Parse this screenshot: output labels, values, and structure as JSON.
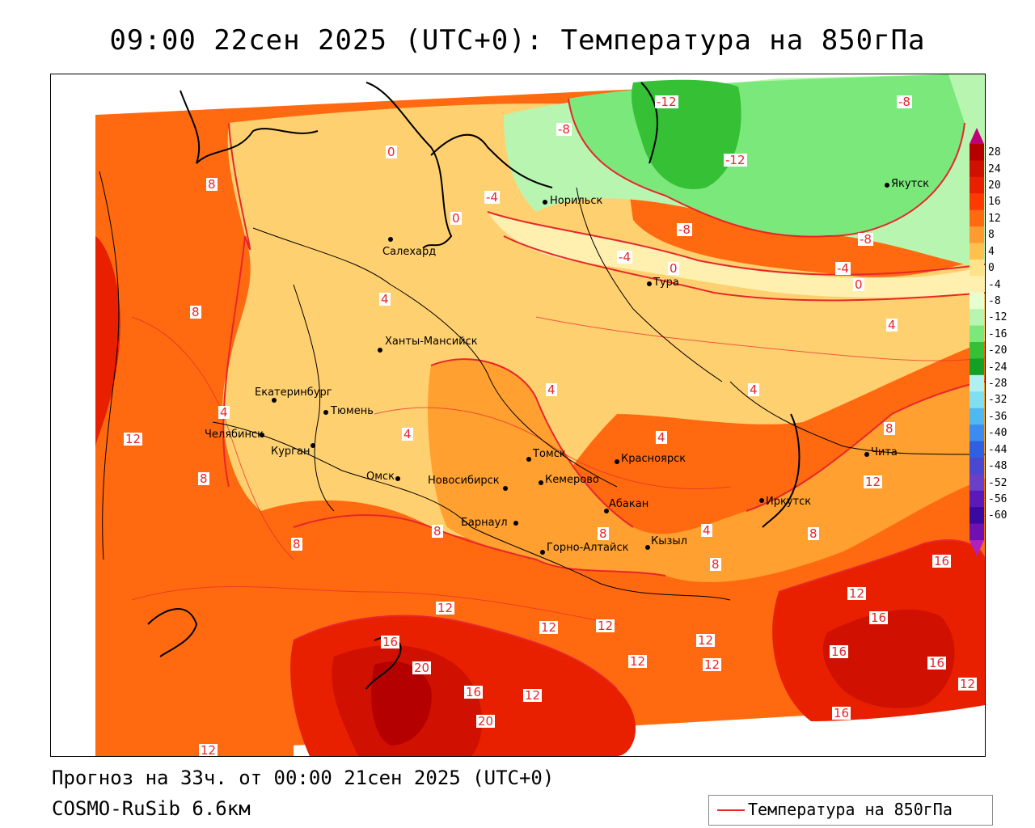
{
  "title": "09:00 22сен 2025 (UTC+0): Температура на 850гПа",
  "footer": {
    "line1": "Прогноз на 33ч. от 00:00 21сен 2025 (UTC+0)",
    "line2": "COSMO-RuSib 6.6км"
  },
  "legend": {
    "label": "Температура на 850гПа",
    "line_color": "#e8262a"
  },
  "colorbar": {
    "ticks": [
      "28",
      "24",
      "20",
      "16",
      "12",
      "8",
      "4",
      "0",
      "-4",
      "-8",
      "-12",
      "-16",
      "-20",
      "-24",
      "-28",
      "-32",
      "-36",
      "-40",
      "-44",
      "-48",
      "-52",
      "-56",
      "-60"
    ],
    "colors": [
      "#b50000",
      "#d01000",
      "#e82000",
      "#ff3a00",
      "#ff6a10",
      "#ff9a30",
      "#ffc050",
      "#ffe38a",
      "#fff0b0",
      "#e6ffd0",
      "#b8f5b0",
      "#7ae87a",
      "#36c036",
      "#14a024",
      "#b0f0f0",
      "#80e0f0",
      "#50b8f0",
      "#3c8cf0",
      "#3060e0",
      "#4a48d0",
      "#6a40c8",
      "#5a1ab8",
      "#3a0aa0",
      "#7010b0"
    ]
  },
  "cities": [
    {
      "name": "Якутск"
    },
    {
      "name": "Норильск"
    },
    {
      "name": "Салехард"
    },
    {
      "name": "Тура"
    },
    {
      "name": "Ханты-Мансийск"
    },
    {
      "name": "Екатеринбург"
    },
    {
      "name": "Тюмень"
    },
    {
      "name": "Челябинск"
    },
    {
      "name": "Курган"
    },
    {
      "name": "Омск"
    },
    {
      "name": "Новосибирск"
    },
    {
      "name": "Томск"
    },
    {
      "name": "Кемерово"
    },
    {
      "name": "Красноярск"
    },
    {
      "name": "Барнаул"
    },
    {
      "name": "Абакан"
    },
    {
      "name": "Горно-Алтайск"
    },
    {
      "name": "Кызыл"
    },
    {
      "name": "Иркутск"
    },
    {
      "name": "Чита"
    }
  ],
  "isolines": [
    "-12",
    "-8",
    "-8",
    "-12",
    "-8",
    "-4",
    "0",
    "0",
    "-8",
    "-8",
    "-4",
    "0",
    "-4",
    "0",
    "8",
    "4",
    "4",
    "8",
    "4",
    "4",
    "4",
    "4",
    "4",
    "4",
    "12",
    "8",
    "8",
    "8",
    "8",
    "8",
    "4",
    "8",
    "12",
    "16",
    "8",
    "12",
    "16",
    "20",
    "16",
    "12",
    "20",
    "12",
    "12",
    "12",
    "12",
    "12",
    "12",
    "16",
    "16",
    "12",
    "16",
    "16",
    "12",
    "12"
  ]
}
